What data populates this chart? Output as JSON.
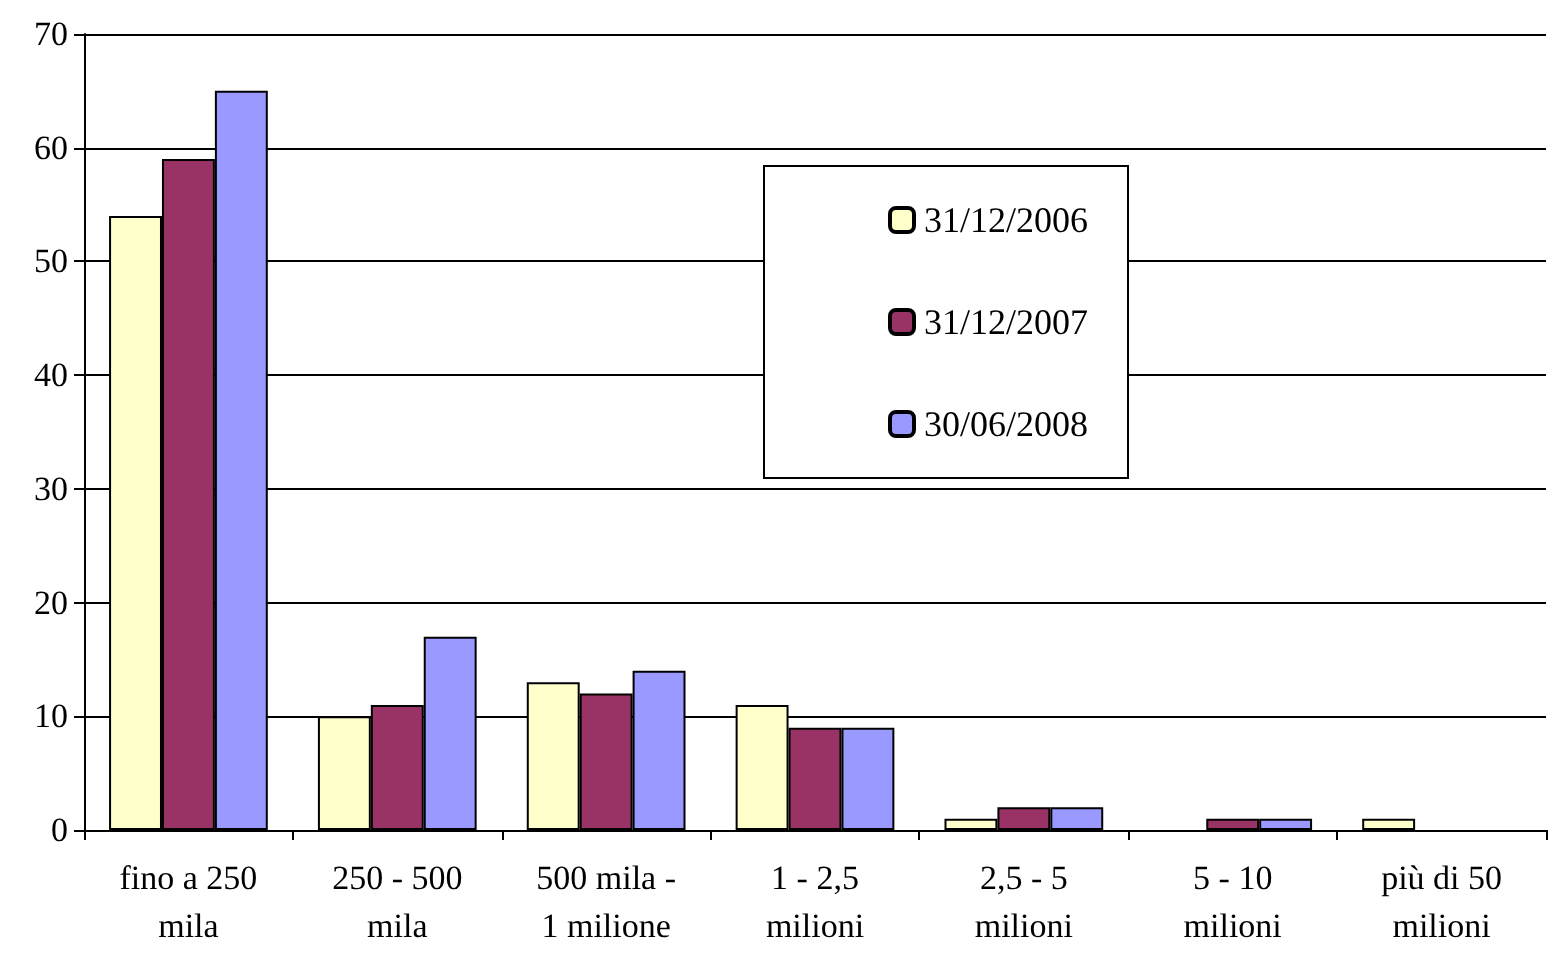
{
  "chart_data": {
    "type": "bar",
    "categories": [
      "fino a 250\nmila",
      "250 - 500\nmila",
      "500 mila -\n1 milione",
      "1 - 2,5\nmilioni",
      "2,5 - 5\nmilioni",
      "5 - 10\nmilioni",
      "più di 50\nmilioni"
    ],
    "series": [
      {
        "name": "31/12/2006",
        "color": "#ffffcc",
        "values": [
          54,
          10,
          13,
          11,
          1,
          0,
          1
        ]
      },
      {
        "name": "31/12/2007",
        "color": "#993366",
        "values": [
          59,
          11,
          12,
          9,
          2,
          1,
          0
        ]
      },
      {
        "name": "30/06/2008",
        "color": "#9999ff",
        "values": [
          65,
          17,
          14,
          9,
          2,
          1,
          0
        ]
      }
    ],
    "ylim": [
      0,
      70
    ],
    "yticks": [
      0,
      10,
      20,
      30,
      40,
      50,
      60,
      70
    ],
    "grid": "y",
    "legend": "top right"
  }
}
